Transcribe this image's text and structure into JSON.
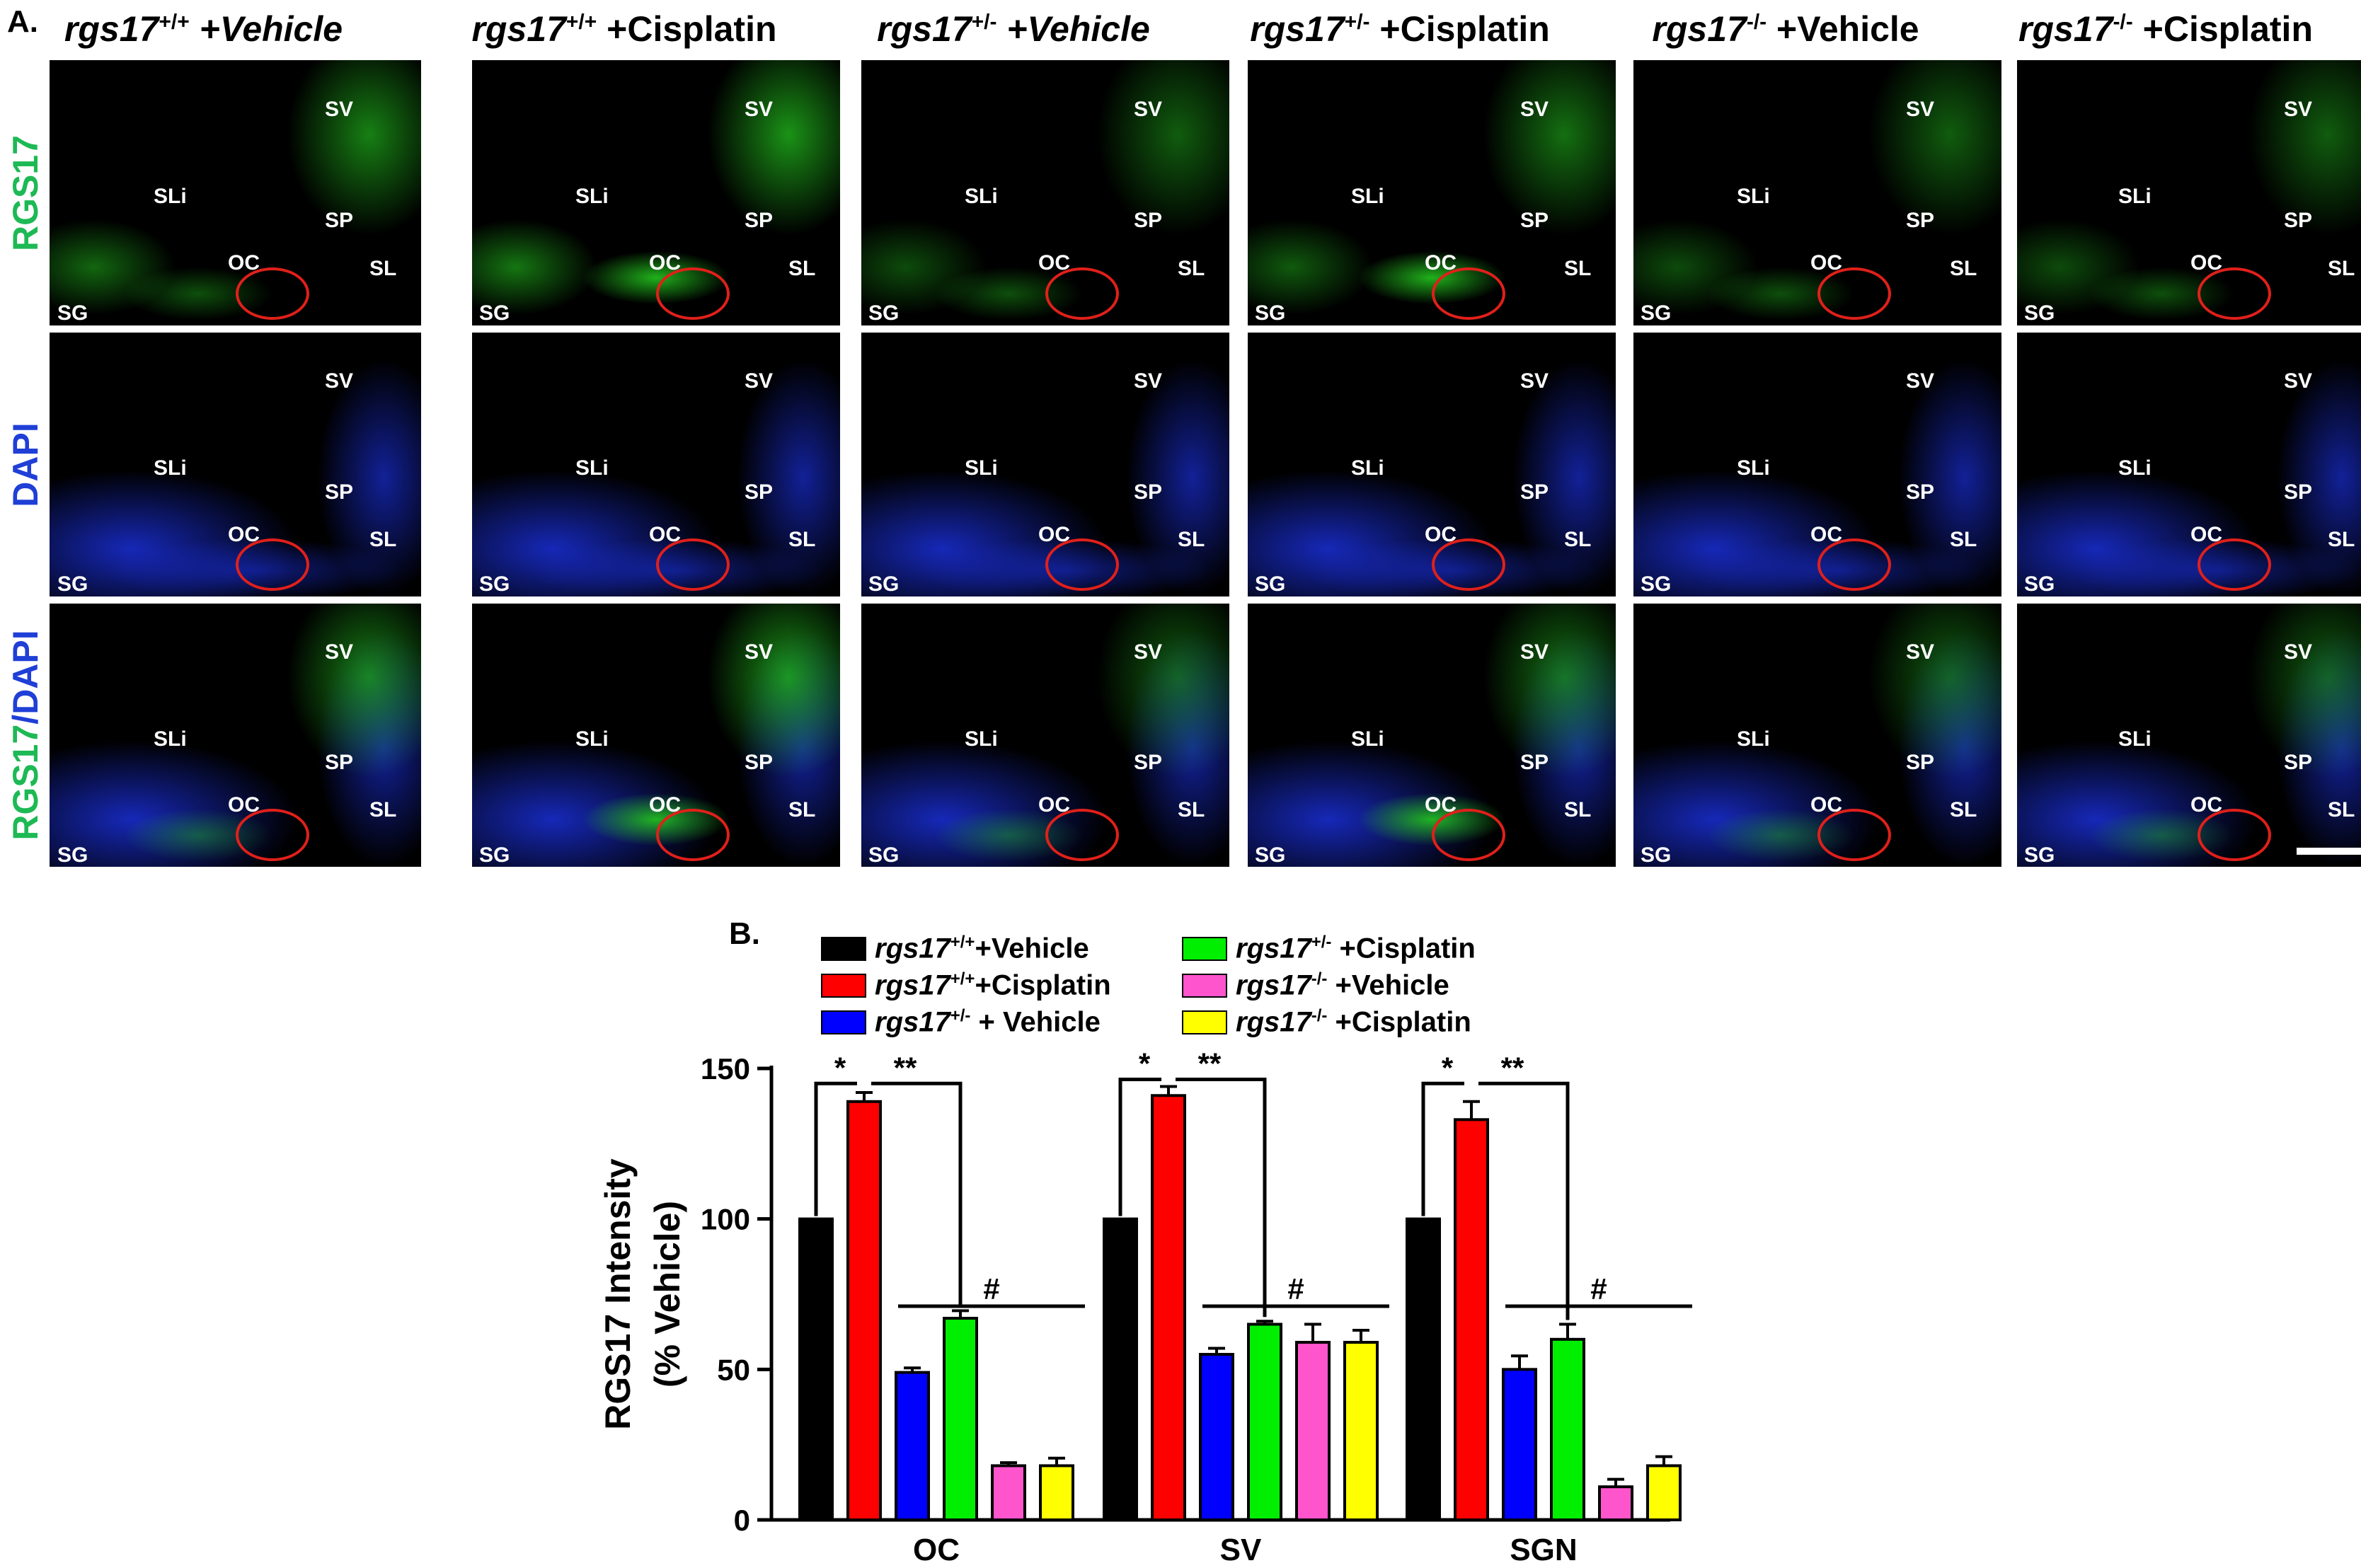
{
  "panel_a": {
    "letter": "A.",
    "columns": [
      {
        "gene": "rgs17",
        "sup": "+/+",
        "treat": " +Vehicle",
        "treat_italic": true
      },
      {
        "gene": "rgs17",
        "sup": "+/+",
        "treat": " +Cisplatin",
        "treat_italic": false
      },
      {
        "gene": "rgs17",
        "sup": "+/-",
        "treat": " +Vehicle",
        "treat_italic": true
      },
      {
        "gene": "rgs17",
        "sup": "+/-",
        "treat": " +Cisplatin",
        "treat_italic": false
      },
      {
        "gene": "rgs17",
        "sup": "-/-",
        "treat": " +Vehicle",
        "treat_italic": false
      },
      {
        "gene": "rgs17",
        "sup": "-/-",
        "treat": " +Cisplatin",
        "treat_italic": false
      }
    ],
    "rows": [
      {
        "label": "RGS17",
        "label_color": "#1db954",
        "stain": "green"
      },
      {
        "label": "DAPI",
        "label_color": "#1f3fd6",
        "stain": "blue"
      },
      {
        "label_part1": "RGS17",
        "label_part2": "/DAPI",
        "label": "RGS17/DAPI",
        "label_color": "#1db954",
        "label_color2": "#1f3fd6",
        "stain": "merge"
      }
    ],
    "region_labels": {
      "sv": "SV",
      "sli": "SLi",
      "sp": "SP",
      "oc": "OC",
      "sl": "SL",
      "sg": "SG"
    },
    "colors": {
      "green_stain": "#23c41e",
      "blue_stain": "#1a2fd8",
      "roi": "#e0201a"
    }
  },
  "panel_b": {
    "letter": "B.",
    "legend": [
      {
        "gene": "rgs17",
        "sup": "+/+",
        "treat": "+Vehicle",
        "color": "#000000"
      },
      {
        "gene": "rgs17",
        "sup": "+/+",
        "treat": "+Cisplatin",
        "color": "#ff0000"
      },
      {
        "gene": "rgs17",
        "sup": "+/-",
        "treat": " + Vehicle",
        "color": "#0000ff"
      },
      {
        "gene": "rgs17",
        "sup": "+/-",
        "treat": " +Cisplatin",
        "color": "#00ee00"
      },
      {
        "gene": "rgs17",
        "sup": "-/-",
        "treat": " +Vehicle",
        "color": "#ff55cc"
      },
      {
        "gene": "rgs17",
        "sup": "-/-",
        "treat": " +Cisplatin",
        "color": "#ffff00"
      }
    ]
  },
  "chart_data": {
    "type": "bar",
    "categories": [
      "OC",
      "SV",
      "SGN"
    ],
    "ylabel_line1": "RGS17 Intensity",
    "ylabel_line2": "(% Vehicle)",
    "ylim": [
      0,
      150
    ],
    "yticks": [
      0,
      50,
      100,
      150
    ],
    "grid": false,
    "series": [
      {
        "name": "rgs17+/+ +Vehicle",
        "color": "#000000",
        "values": [
          100,
          100,
          100
        ],
        "errors": [
          0,
          0,
          0
        ]
      },
      {
        "name": "rgs17+/+ +Cisplatin",
        "color": "#ff0000",
        "values": [
          139,
          141,
          133
        ],
        "errors": [
          3,
          3,
          6
        ]
      },
      {
        "name": "rgs17+/- + Vehicle",
        "color": "#0000ff",
        "values": [
          49,
          55,
          50
        ],
        "errors": [
          1.5,
          2,
          4.5
        ]
      },
      {
        "name": "rgs17+/- +Cisplatin",
        "color": "#00ee00",
        "values": [
          67,
          65,
          60
        ],
        "errors": [
          2.5,
          1,
          5
        ]
      },
      {
        "name": "rgs17-/- +Vehicle",
        "color": "#ff55cc",
        "values": [
          18,
          59,
          11
        ],
        "errors": [
          1,
          6,
          2.5
        ]
      },
      {
        "name": "rgs17-/- +Cisplatin",
        "color": "#ffff00",
        "values": [
          18,
          59,
          18
        ],
        "errors": [
          2.5,
          4,
          3
        ]
      }
    ],
    "annotations": {
      "single": "*",
      "double": "**",
      "hash": "#"
    }
  }
}
